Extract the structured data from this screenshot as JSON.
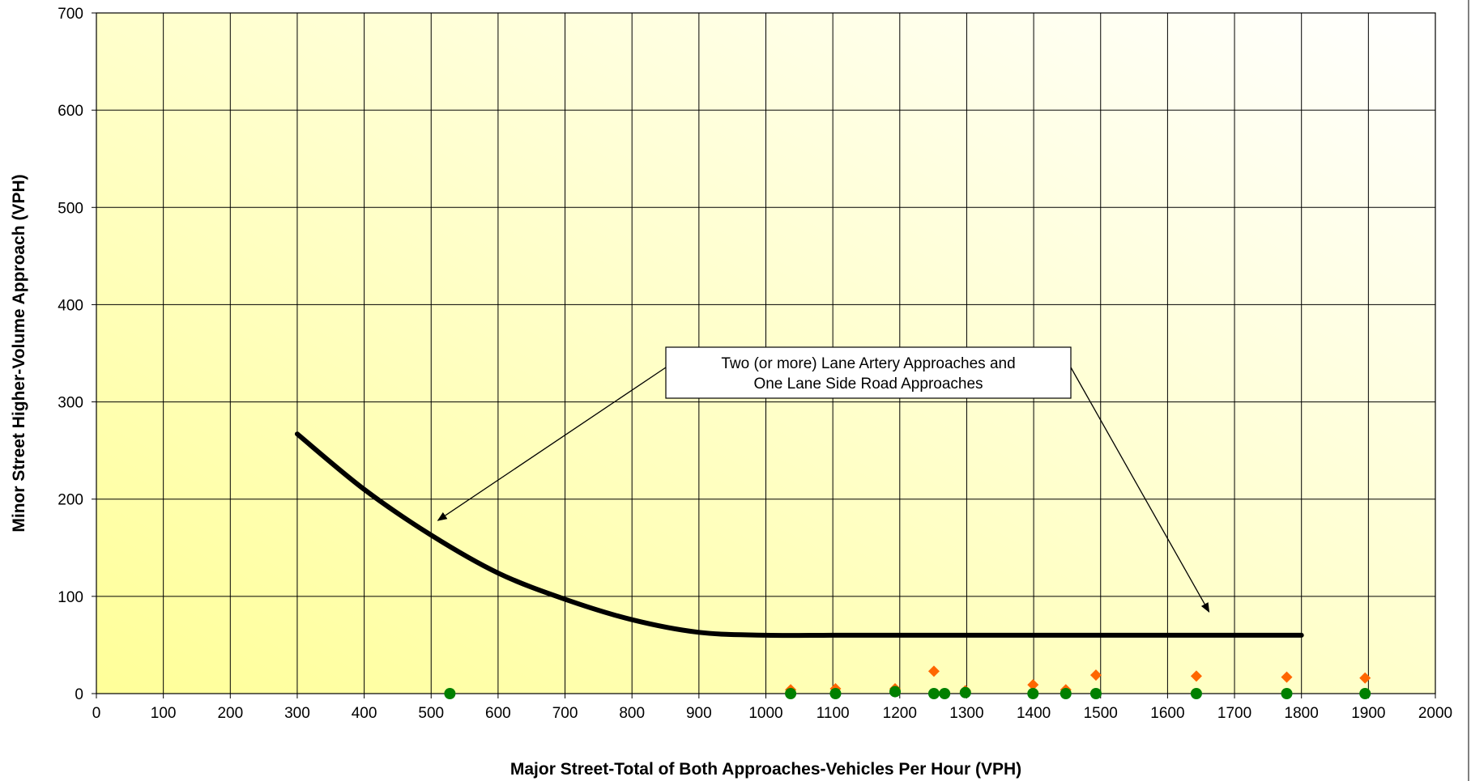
{
  "chart_data": {
    "type": "scatter",
    "title": "",
    "xlabel": "Major Street-Total of Both Approaches-Vehicles Per Hour (VPH)",
    "ylabel": "Minor Street Higher-Volume Approach (VPH)",
    "xlim": [
      0,
      2000
    ],
    "ylim": [
      0,
      700
    ],
    "x_ticks": [
      0,
      100,
      200,
      300,
      400,
      500,
      600,
      700,
      800,
      900,
      1000,
      1100,
      1200,
      1300,
      1400,
      1500,
      1600,
      1700,
      1800,
      1900,
      2000
    ],
    "y_ticks": [
      0,
      100,
      200,
      300,
      400,
      500,
      600,
      700
    ],
    "grid": true,
    "background_gradient": [
      "#ffff99",
      "#ffffff"
    ],
    "series": [
      {
        "kind": "line",
        "color": "#000000",
        "points": [
          {
            "x": 300,
            "y": 267
          },
          {
            "x": 400,
            "y": 210
          },
          {
            "x": 500,
            "y": 163
          },
          {
            "x": 600,
            "y": 124
          },
          {
            "x": 700,
            "y": 97
          },
          {
            "x": 800,
            "y": 76
          },
          {
            "x": 900,
            "y": 63
          },
          {
            "x": 1000,
            "y": 60
          },
          {
            "x": 1100,
            "y": 60
          },
          {
            "x": 1200,
            "y": 60
          },
          {
            "x": 1300,
            "y": 60
          },
          {
            "x": 1400,
            "y": 60
          },
          {
            "x": 1500,
            "y": 60
          },
          {
            "x": 1600,
            "y": 60
          },
          {
            "x": 1700,
            "y": 60
          },
          {
            "x": 1800,
            "y": 60
          }
        ]
      },
      {
        "kind": "scatter",
        "marker": "diamond",
        "color": "#ff6600",
        "points": [
          {
            "x": 528,
            "y": 0
          },
          {
            "x": 1037,
            "y": 4
          },
          {
            "x": 1104,
            "y": 5
          },
          {
            "x": 1193,
            "y": 5
          },
          {
            "x": 1251,
            "y": 23
          },
          {
            "x": 1298,
            "y": 3
          },
          {
            "x": 1399,
            "y": 9
          },
          {
            "x": 1448,
            "y": 4
          },
          {
            "x": 1493,
            "y": 19
          },
          {
            "x": 1643,
            "y": 18
          },
          {
            "x": 1778,
            "y": 17
          },
          {
            "x": 1895,
            "y": 16
          }
        ]
      },
      {
        "kind": "scatter",
        "marker": "circle",
        "color": "#008000",
        "points": [
          {
            "x": 528,
            "y": 0
          },
          {
            "x": 1037,
            "y": 0
          },
          {
            "x": 1104,
            "y": 0
          },
          {
            "x": 1193,
            "y": 2
          },
          {
            "x": 1251,
            "y": 0
          },
          {
            "x": 1267,
            "y": 0
          },
          {
            "x": 1298,
            "y": 1
          },
          {
            "x": 1399,
            "y": 0
          },
          {
            "x": 1448,
            "y": 0
          },
          {
            "x": 1493,
            "y": 0
          },
          {
            "x": 1643,
            "y": 0
          },
          {
            "x": 1778,
            "y": 0
          },
          {
            "x": 1895,
            "y": 0
          }
        ]
      }
    ],
    "annotations": [
      {
        "lines": [
          "Two (or more) Lane Artery Approaches and",
          "One Lane Side Road Approaches"
        ],
        "arrow_targets": [
          {
            "x": 510,
            "y": 178
          },
          {
            "x": 1662,
            "y": 84
          }
        ]
      }
    ]
  }
}
